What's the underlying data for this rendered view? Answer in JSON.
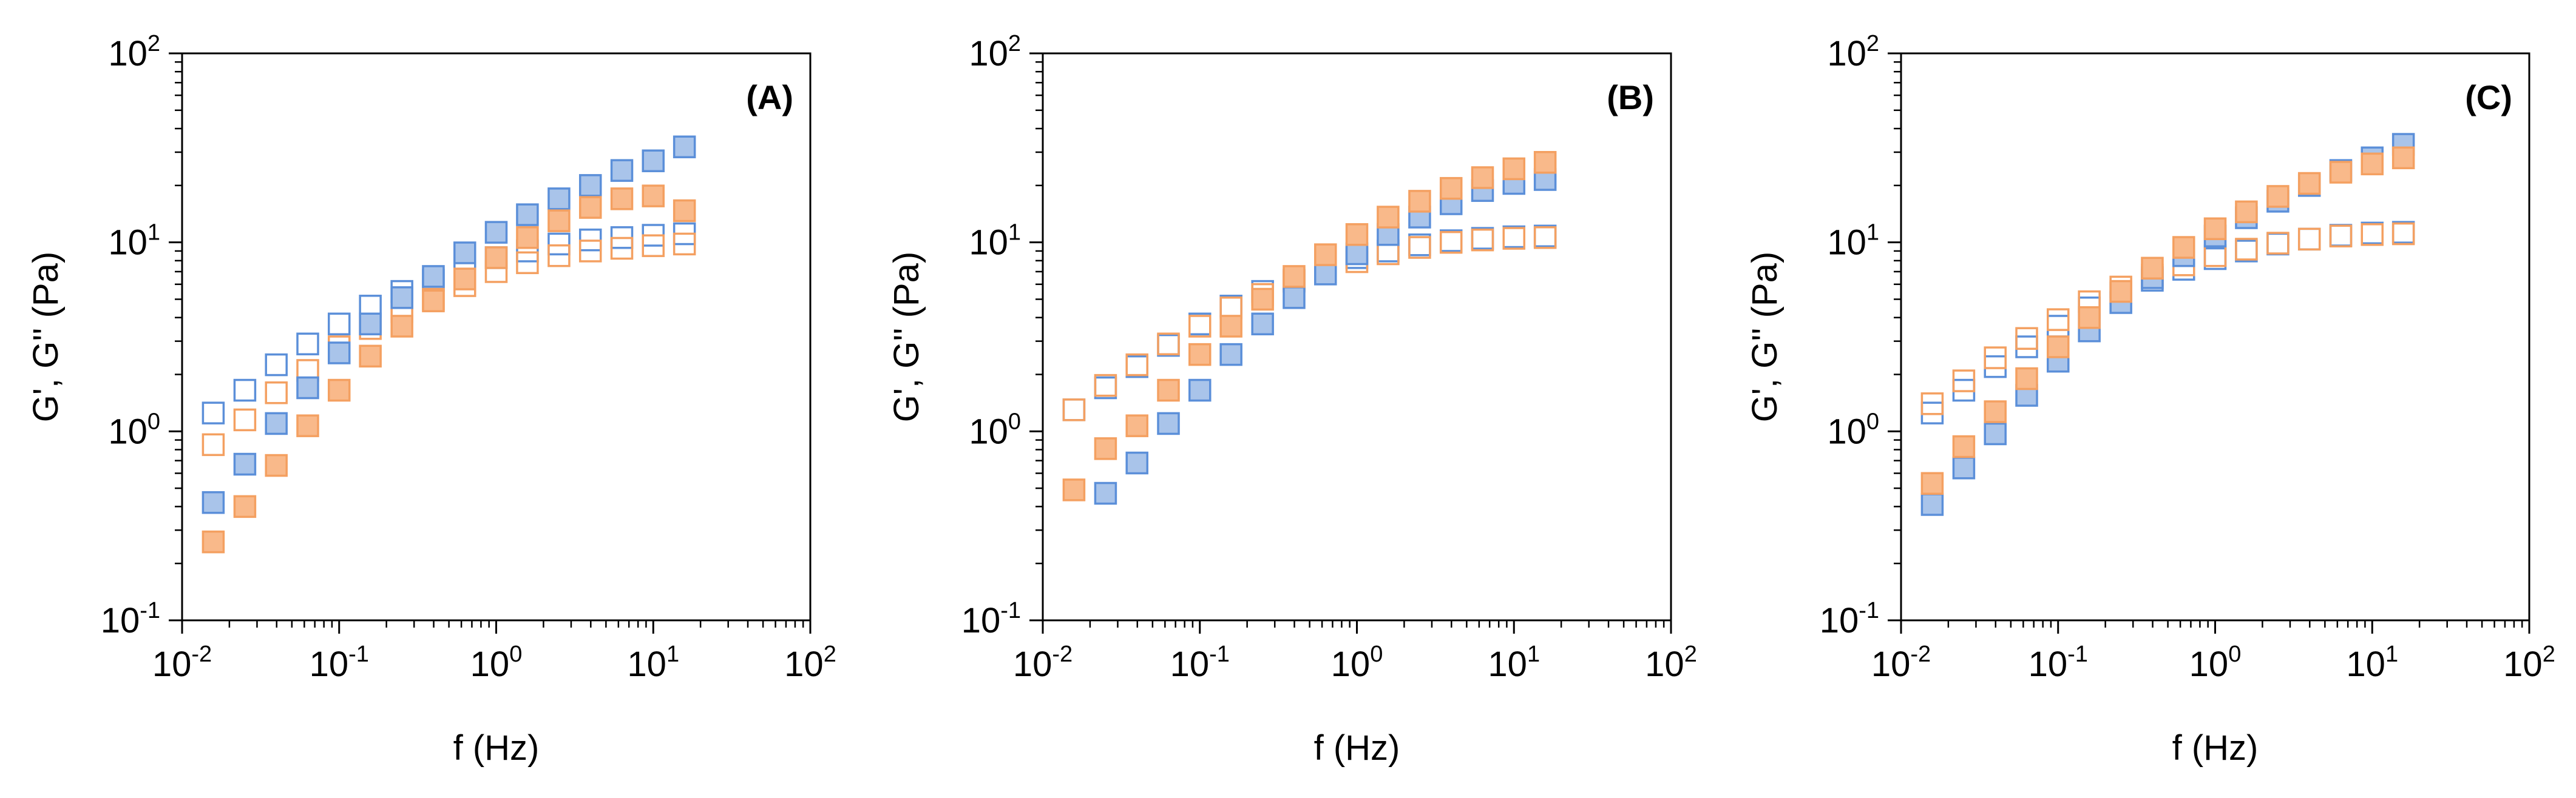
{
  "chart_data": [
    {
      "type": "scatter",
      "panel_label": "(A)",
      "xlabel": "f (Hz)",
      "ylabel": "G', G'' (Pa)",
      "x_scale": "log",
      "y_scale": "log",
      "xlim": [
        0.01,
        100
      ],
      "ylim": [
        0.1,
        100
      ],
      "x_tick_labels": [
        {
          "base": "10",
          "exp": "-2"
        },
        {
          "base": "10",
          "exp": "-1"
        },
        {
          "base": "10",
          "exp": "0"
        },
        {
          "base": "10",
          "exp": "1"
        },
        {
          "base": "10",
          "exp": "2"
        }
      ],
      "y_tick_labels": [
        {
          "base": "10",
          "exp": "-1"
        },
        {
          "base": "10",
          "exp": "0"
        },
        {
          "base": "10",
          "exp": "1"
        },
        {
          "base": "10",
          "exp": "2"
        }
      ],
      "x": [
        0.0158,
        0.0251,
        0.0398,
        0.0631,
        0.1,
        0.158,
        0.251,
        0.398,
        0.631,
        1.0,
        1.58,
        2.51,
        3.98,
        6.31,
        10.0,
        15.8
      ],
      "series": [
        {
          "color": "#5b8fd9",
          "fill": "#a9c4ea",
          "filled": true,
          "values": [
            0.42,
            0.67,
            1.1,
            1.7,
            2.6,
            3.7,
            5.1,
            6.6,
            8.8,
            11.3,
            14.0,
            17.0,
            20.0,
            24.0,
            27.0,
            32.0
          ]
        },
        {
          "color": "#5b8fd9",
          "fill": "none",
          "filled": false,
          "values": [
            1.25,
            1.65,
            2.25,
            2.9,
            3.7,
            4.6,
            5.5,
            6.3,
            7.3,
            8.3,
            9.0,
            9.8,
            10.3,
            10.6,
            10.9,
            11.1
          ]
        },
        {
          "color": "#f4a061",
          "fill": "#f9b98a",
          "filled": true,
          "values": [
            0.26,
            0.4,
            0.66,
            1.07,
            1.65,
            2.5,
            3.6,
            4.9,
            6.4,
            8.3,
            10.6,
            13.0,
            15.3,
            17.0,
            17.6,
            14.7
          ]
        },
        {
          "color": "#f4a061",
          "fill": "none",
          "filled": false,
          "values": [
            0.85,
            1.15,
            1.6,
            2.1,
            2.8,
            3.5,
            4.3,
            5.0,
            5.9,
            7.0,
            7.8,
            8.5,
            9.0,
            9.3,
            9.6,
            9.8
          ]
        }
      ]
    },
    {
      "type": "scatter",
      "panel_label": "(B)",
      "xlabel": "f (Hz)",
      "ylabel": "G', G'' (Pa)",
      "x_scale": "log",
      "y_scale": "log",
      "xlim": [
        0.01,
        100
      ],
      "ylim": [
        0.1,
        100
      ],
      "x_tick_labels": [
        {
          "base": "10",
          "exp": "-2"
        },
        {
          "base": "10",
          "exp": "-1"
        },
        {
          "base": "10",
          "exp": "0"
        },
        {
          "base": "10",
          "exp": "1"
        },
        {
          "base": "10",
          "exp": "2"
        }
      ],
      "y_tick_labels": [
        {
          "base": "10",
          "exp": "-1"
        },
        {
          "base": "10",
          "exp": "0"
        },
        {
          "base": "10",
          "exp": "1"
        },
        {
          "base": "10",
          "exp": "2"
        }
      ],
      "x": [
        0.0158,
        0.0251,
        0.0398,
        0.0631,
        0.1,
        0.158,
        0.251,
        0.398,
        0.631,
        1.0,
        1.58,
        2.51,
        3.98,
        6.31,
        10.0,
        15.8
      ],
      "series": [
        {
          "color": "#5b8fd9",
          "fill": "#a9c4ea",
          "filled": true,
          "values": [
            null,
            0.47,
            0.68,
            1.1,
            1.65,
            2.55,
            3.7,
            5.1,
            6.8,
            8.7,
            11.0,
            13.6,
            16.0,
            18.8,
            20.5,
            21.5
          ]
        },
        {
          "color": "#5b8fd9",
          "fill": "none",
          "filled": false,
          "values": [
            1.3,
            1.7,
            2.2,
            2.85,
            3.7,
            4.6,
            5.5,
            6.3,
            7.3,
            8.3,
            9.0,
            9.7,
            10.2,
            10.5,
            10.7,
            10.8
          ]
        },
        {
          "color": "#f4a061",
          "fill": "#f9b98a",
          "filled": true,
          "values": [
            0.49,
            0.81,
            1.07,
            1.65,
            2.55,
            3.6,
            5.0,
            6.6,
            8.6,
            11.0,
            13.6,
            16.5,
            19.3,
            22.0,
            24.5,
            26.5
          ]
        },
        {
          "color": "#f4a061",
          "fill": "none",
          "filled": false,
          "values": [
            1.3,
            1.75,
            2.25,
            2.9,
            3.6,
            4.5,
            5.3,
            6.2,
            7.0,
            7.9,
            8.7,
            9.4,
            10.0,
            10.3,
            10.5,
            10.6
          ]
        }
      ]
    },
    {
      "type": "scatter",
      "panel_label": "(C)",
      "xlabel": "f (Hz)",
      "ylabel": "G', G'' (Pa)",
      "x_scale": "log",
      "y_scale": "log",
      "xlim": [
        0.01,
        100
      ],
      "ylim": [
        0.1,
        100
      ],
      "x_tick_labels": [
        {
          "base": "10",
          "exp": "-2"
        },
        {
          "base": "10",
          "exp": "-1"
        },
        {
          "base": "10",
          "exp": "0"
        },
        {
          "base": "10",
          "exp": "1"
        },
        {
          "base": "10",
          "exp": "2"
        }
      ],
      "y_tick_labels": [
        {
          "base": "10",
          "exp": "-1"
        },
        {
          "base": "10",
          "exp": "0"
        },
        {
          "base": "10",
          "exp": "1"
        },
        {
          "base": "10",
          "exp": "2"
        }
      ],
      "x": [
        0.0158,
        0.0251,
        0.0398,
        0.0631,
        0.1,
        0.158,
        0.251,
        0.398,
        0.631,
        1.0,
        1.58,
        2.51,
        3.98,
        6.31,
        10.0,
        15.8
      ],
      "series": [
        {
          "color": "#5b8fd9",
          "fill": "#a9c4ea",
          "filled": true,
          "values": [
            0.41,
            0.64,
            0.97,
            1.55,
            2.35,
            3.4,
            4.8,
            6.5,
            8.5,
            10.8,
            13.5,
            16.5,
            20.0,
            24.0,
            28.0,
            33.0
          ]
        },
        {
          "color": "#5b8fd9",
          "fill": "none",
          "filled": false,
          "values": [
            1.25,
            1.65,
            2.2,
            2.8,
            3.6,
            4.5,
            5.4,
            6.3,
            7.2,
            8.2,
            9.0,
            9.8,
            10.4,
            10.9,
            11.2,
            11.3
          ]
        },
        {
          "color": "#f4a061",
          "fill": "#f9b98a",
          "filled": true,
          "values": [
            0.53,
            0.83,
            1.27,
            1.9,
            2.8,
            4.0,
            5.5,
            7.3,
            9.4,
            11.8,
            14.5,
            17.5,
            20.5,
            23.5,
            26.0,
            28.0
          ]
        },
        {
          "color": "#f4a061",
          "fill": "none",
          "filled": false,
          "values": [
            1.4,
            1.85,
            2.45,
            3.1,
            3.9,
            4.85,
            5.8,
            6.7,
            7.6,
            8.5,
            9.2,
            9.9,
            10.4,
            10.8,
            11.0,
            11.1
          ]
        }
      ]
    }
  ]
}
